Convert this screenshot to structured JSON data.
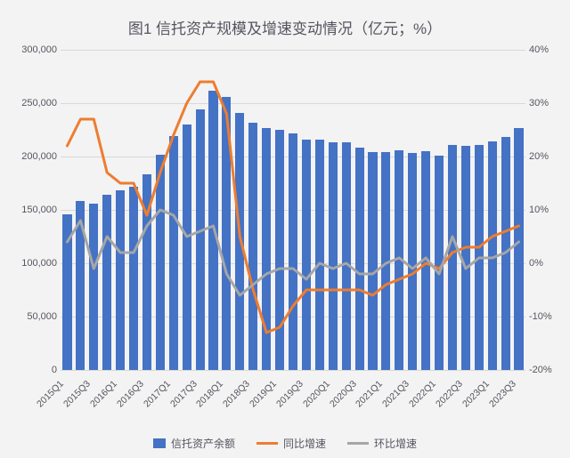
{
  "chart": {
    "type": "combo-bar-line",
    "title": "图1  信托资产规模及增速变动情况（亿元；%）",
    "background_color": "#f3f3f3",
    "grid_color": "#d8d8d8",
    "axis_label_fontsize": 11,
    "title_fontsize": 17,
    "axis_label_color": "#555560",
    "categories": [
      "2015Q1",
      "2015Q2",
      "2015Q3",
      "2015Q4",
      "2016Q1",
      "2016Q2",
      "2016Q3",
      "2016Q4",
      "2017Q1",
      "2017Q2",
      "2017Q3",
      "2017Q4",
      "2018Q1",
      "2018Q2",
      "2018Q3",
      "2018Q4",
      "2019Q1",
      "2019Q2",
      "2019Q3",
      "2019Q4",
      "2020Q1",
      "2020Q2",
      "2020Q3",
      "2020Q4",
      "2021Q1",
      "2021Q2",
      "2021Q3",
      "2021Q4",
      "2022Q1",
      "2022Q2",
      "2022Q3",
      "2022Q4",
      "2023Q1",
      "2023Q2",
      "2023Q3"
    ],
    "x_ticks": [
      "2015Q1",
      "2015Q3",
      "2016Q1",
      "2016Q3",
      "2017Q1",
      "2017Q3",
      "2018Q1",
      "2018Q3",
      "2019Q1",
      "2019Q3",
      "2020Q1",
      "2020Q3",
      "2021Q1",
      "2021Q3",
      "2022Q1",
      "2022Q3",
      "2023Q1",
      "2023Q3"
    ],
    "bars": {
      "name": "信托资产余额",
      "color": "#4472c4",
      "values": [
        146000,
        158000,
        156000,
        164000,
        168000,
        172000,
        183000,
        202000,
        219000,
        230000,
        244000,
        262000,
        256000,
        241000,
        232000,
        227000,
        225000,
        222000,
        216000,
        216000,
        213000,
        213000,
        208000,
        204000,
        204000,
        206000,
        203000,
        205000,
        201000,
        211000,
        210000,
        211000,
        214000,
        218000,
        227000
      ],
      "bar_width_frac": 0.68
    },
    "lines": [
      {
        "name": "同比增速",
        "color": "#ed7d31",
        "width": 3,
        "values": [
          22,
          27,
          27,
          17,
          15,
          15,
          9,
          17,
          24,
          30,
          34,
          34,
          28,
          5,
          -5,
          -13,
          -12,
          -8,
          -5,
          -5,
          -5,
          -5,
          -5,
          -6,
          -4,
          -3,
          -2,
          0,
          -1,
          2,
          3,
          3,
          5,
          6,
          7
        ]
      },
      {
        "name": "环比增速",
        "color": "#a6a6a6",
        "width": 3,
        "values": [
          4,
          8,
          -1,
          5,
          2,
          2,
          7,
          10,
          9,
          5,
          6,
          7,
          -2,
          -6,
          -4,
          -2,
          -1,
          -1,
          -3,
          0,
          -1,
          0,
          -2,
          -2,
          0,
          1,
          -1,
          1,
          -2,
          5,
          -1,
          1,
          1,
          2,
          4
        ]
      }
    ],
    "y_left": {
      "min": 0,
      "max": 300000,
      "step": 50000,
      "ticks": [
        "0",
        "50,000",
        "100,000",
        "150,000",
        "200,000",
        "250,000",
        "300,000"
      ]
    },
    "y_right": {
      "min": -20,
      "max": 40,
      "step": 10,
      "ticks": [
        "-20%",
        "-10%",
        "0%",
        "10%",
        "20%",
        "30%",
        "40%"
      ]
    },
    "legend_items": [
      {
        "label": "信托资产余额",
        "type": "bar",
        "color": "#4472c4"
      },
      {
        "label": "同比增速",
        "type": "line",
        "color": "#ed7d31"
      },
      {
        "label": "环比增速",
        "type": "line",
        "color": "#a6a6a6"
      }
    ]
  }
}
